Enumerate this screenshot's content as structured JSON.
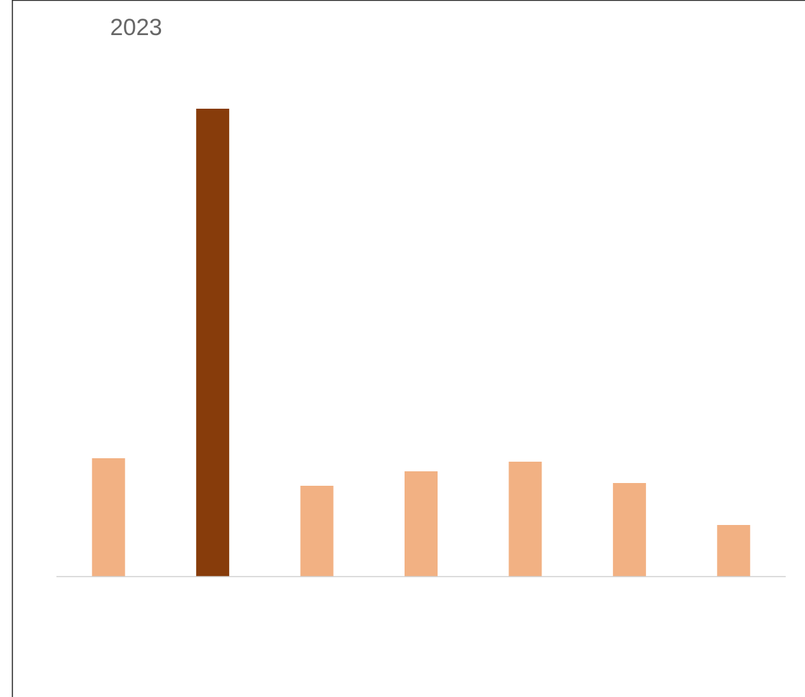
{
  "chart_data": {
    "type": "bar",
    "title": "2023",
    "categories": [
      null,
      null,
      null,
      null,
      null,
      null,
      null
    ],
    "values": [
      172,
      680,
      132,
      153,
      167,
      136,
      75
    ],
    "colors": [
      "#f2b183",
      "#873c0b",
      "#f2b183",
      "#f2b183",
      "#f2b183",
      "#f2b183",
      "#f2b183"
    ],
    "ylim": [
      0,
      700
    ],
    "grid": false
  }
}
